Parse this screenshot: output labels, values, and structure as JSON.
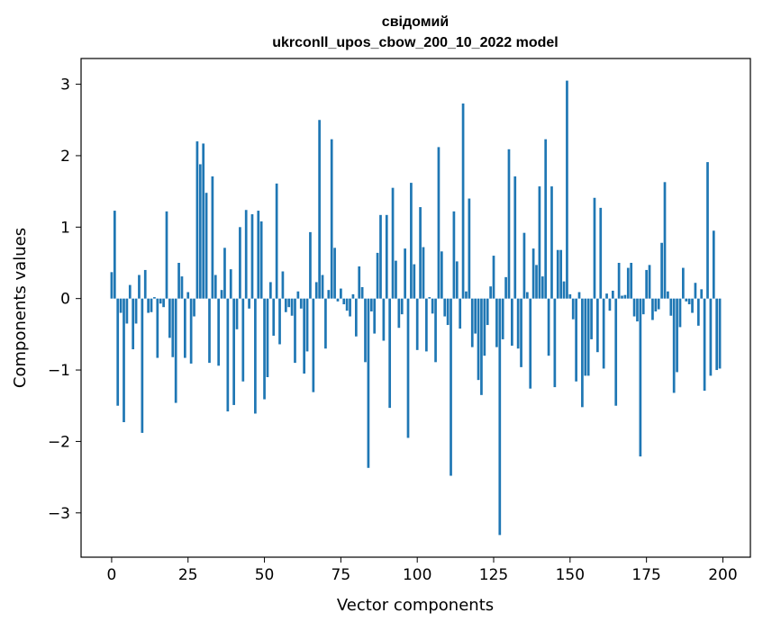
{
  "chart_data": {
    "type": "bar",
    "title_line1": "свідомий",
    "title_line2": "ukrconll_upos_cbow_200_10_2022 model",
    "xlabel": "Vector components",
    "ylabel": "Components values",
    "xlim": [
      -10,
      209
    ],
    "ylim": [
      -3.62,
      3.36
    ],
    "xticks": [
      0,
      25,
      50,
      75,
      100,
      125,
      150,
      175,
      200
    ],
    "yticks": [
      -3,
      -2,
      -1,
      0,
      1,
      2,
      3
    ],
    "xtick_labels": [
      "0",
      "25",
      "50",
      "75",
      "100",
      "125",
      "150",
      "175",
      "200"
    ],
    "ytick_labels": [
      "−3",
      "−2",
      "−1",
      "0",
      "1",
      "2",
      "3"
    ],
    "bar_color": "#1f77b4",
    "grid": false,
    "values": [
      0.37,
      1.23,
      -1.5,
      -0.2,
      -1.73,
      -0.35,
      0.19,
      -0.71,
      -0.35,
      0.33,
      -1.88,
      0.4,
      -0.2,
      -0.19,
      0.02,
      -0.83,
      -0.07,
      -0.12,
      1.22,
      -0.55,
      -0.82,
      -1.46,
      0.5,
      0.31,
      -0.83,
      0.09,
      -0.91,
      -0.25,
      2.2,
      1.88,
      2.17,
      1.48,
      -0.9,
      1.71,
      0.33,
      -0.94,
      0.12,
      0.71,
      -1.58,
      0.41,
      -1.49,
      -0.43,
      1.0,
      -1.16,
      1.24,
      -0.14,
      1.18,
      -1.61,
      1.23,
      1.08,
      -1.41,
      -1.1,
      0.23,
      -0.52,
      1.61,
      -0.64,
      0.38,
      -0.19,
      -0.12,
      -0.24,
      -0.9,
      0.1,
      -0.14,
      -1.05,
      -0.74,
      0.93,
      -1.31,
      0.23,
      2.5,
      0.33,
      -0.7,
      0.12,
      2.23,
      0.71,
      -0.04,
      0.14,
      -0.08,
      -0.17,
      -0.25,
      0.06,
      -0.53,
      0.45,
      0.16,
      -0.89,
      -2.37,
      -0.18,
      -0.49,
      0.64,
      1.17,
      -0.59,
      1.17,
      -1.53,
      1.55,
      0.53,
      -0.41,
      -0.22,
      0.7,
      -1.95,
      1.62,
      0.48,
      -0.72,
      1.28,
      0.72,
      -0.74,
      0.02,
      -0.21,
      -0.89,
      2.12,
      0.66,
      -0.25,
      -0.37,
      -2.48,
      1.22,
      0.52,
      -0.42,
      2.73,
      0.1,
      1.4,
      -0.68,
      -0.49,
      -1.14,
      -1.35,
      -0.8,
      -0.37,
      0.17,
      0.6,
      -0.68,
      -3.31,
      -0.57,
      0.3,
      2.09,
      -0.66,
      1.71,
      -0.7,
      -0.96,
      0.92,
      0.09,
      -1.26,
      0.7,
      0.47,
      1.57,
      0.31,
      2.23,
      -0.8,
      1.57,
      -1.24,
      0.68,
      0.68,
      0.24,
      3.05,
      0.06,
      -0.29,
      -1.16,
      0.09,
      -1.52,
      -1.08,
      -1.08,
      -0.57,
      1.41,
      -0.75,
      1.27,
      -0.98,
      0.07,
      -0.17,
      0.11,
      -1.5,
      0.5,
      0.04,
      0.05,
      0.43,
      0.5,
      -0.25,
      -0.32,
      -2.21,
      -0.22,
      0.4,
      0.47,
      -0.3,
      -0.18,
      -0.15,
      0.78,
      1.63,
      0.1,
      -0.24,
      -1.32,
      -1.03,
      -0.4,
      0.43,
      -0.04,
      -0.08,
      -0.2,
      0.22,
      -0.38,
      0.13,
      -1.29,
      1.91,
      -1.08,
      0.95,
      -1.0,
      -0.98
    ]
  }
}
